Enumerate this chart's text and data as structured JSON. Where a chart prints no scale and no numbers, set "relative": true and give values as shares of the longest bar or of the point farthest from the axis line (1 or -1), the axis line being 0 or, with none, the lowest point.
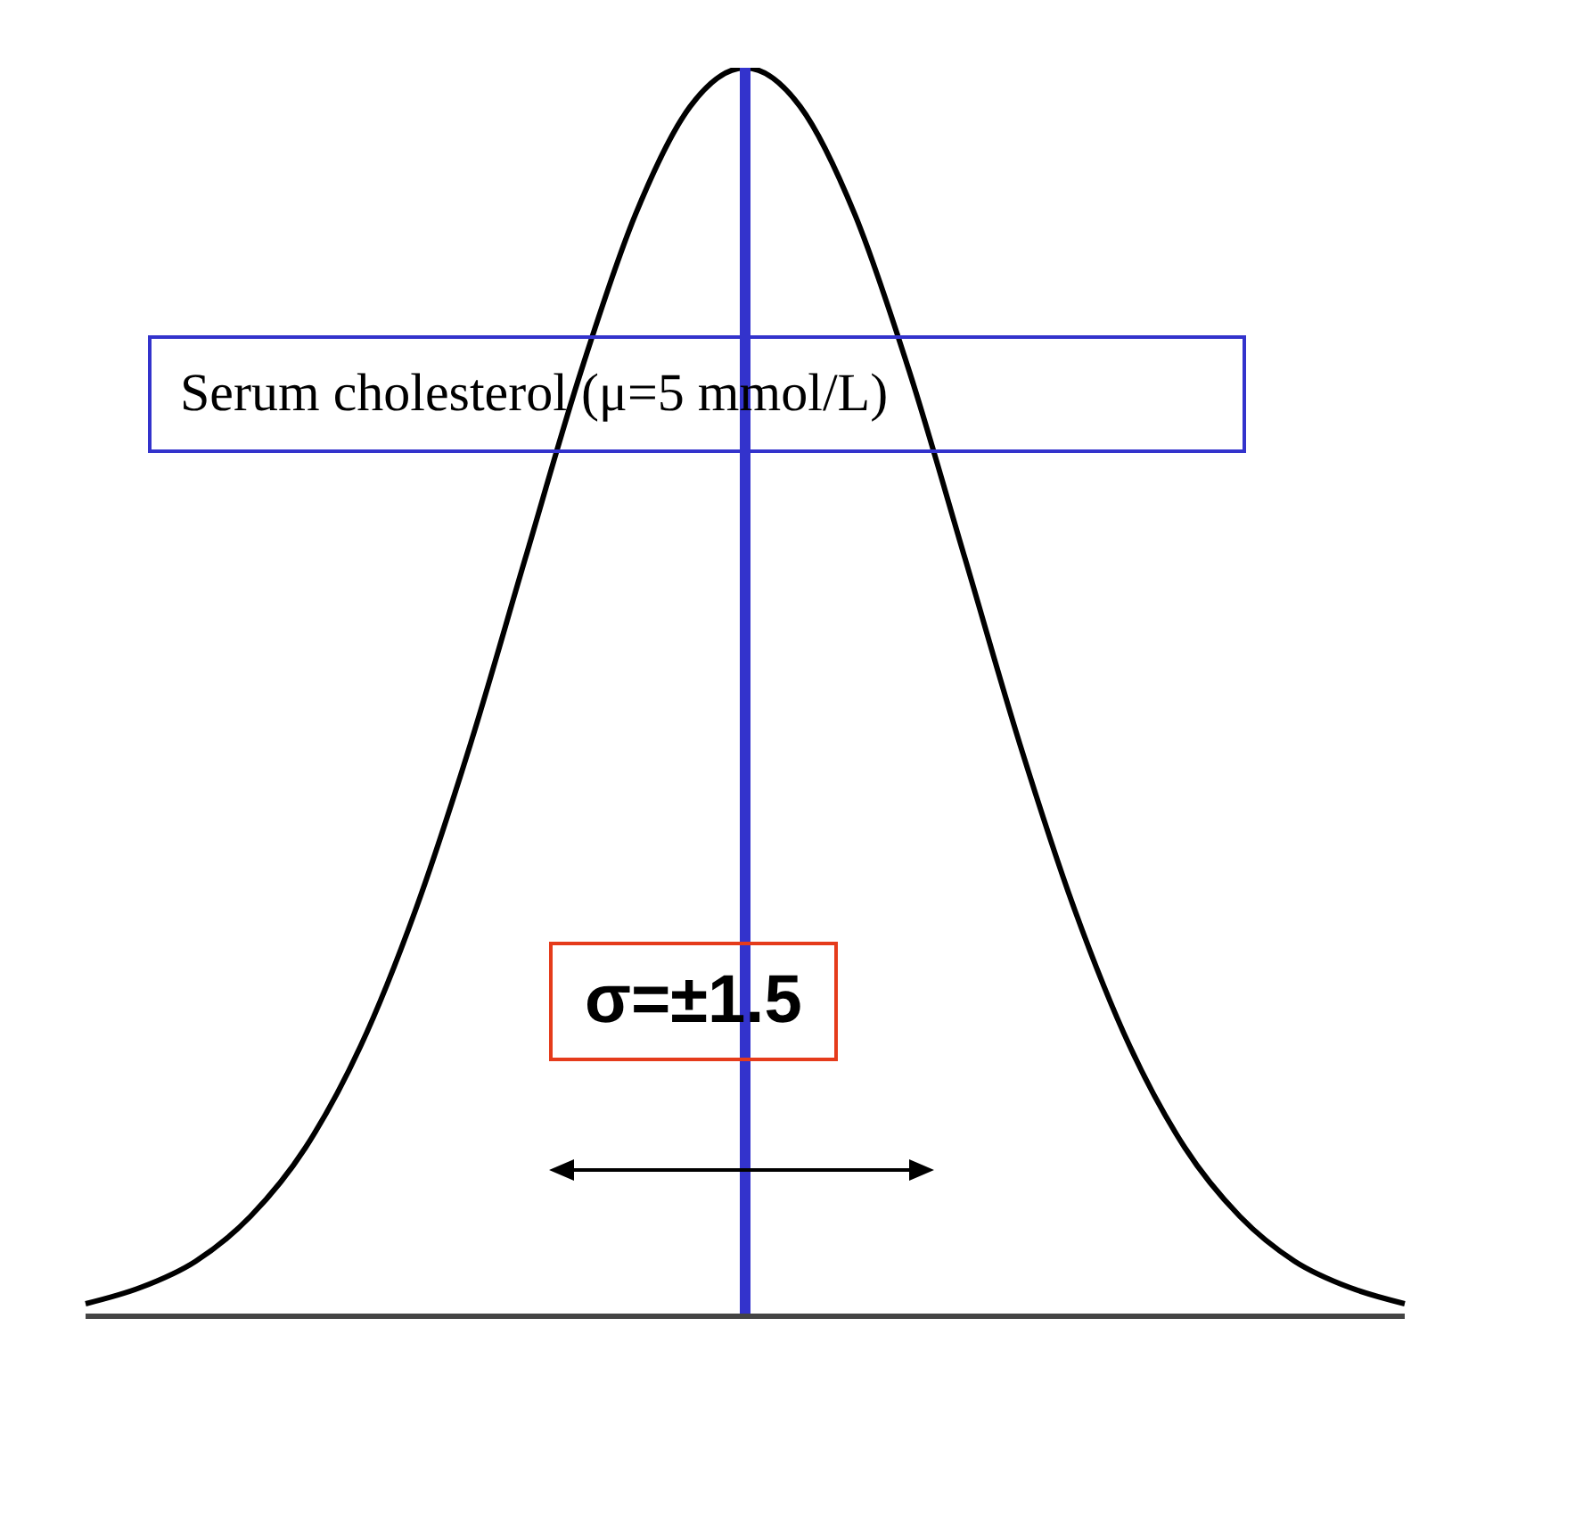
{
  "chart_data": {
    "type": "line",
    "relative": true,
    "categories": [
      null,
      null,
      null,
      null,
      null,
      null,
      null,
      null,
      null,
      null,
      null,
      null,
      null,
      null,
      null,
      null,
      null,
      null,
      null,
      null,
      null,
      null,
      null,
      null,
      null
    ],
    "series": [
      {
        "color": "#000000",
        "values": [
          0.01,
          0.023,
          0.044,
          0.08,
          0.135,
          0.216,
          0.325,
          0.458,
          0.607,
          0.755,
          0.882,
          0.969,
          1,
          0.969,
          0.882,
          0.755,
          0.607,
          0.458,
          0.325,
          0.216,
          0.135,
          0.08,
          0.044,
          0.023,
          0.01
        ]
      }
    ],
    "marker": "none",
    "line_style": "solid",
    "ref_lines": [
      {
        "axis": "x",
        "color": "#3333cc"
      }
    ],
    "annotations": [
      "Serum cholesterol (μ=5 mmol/L)",
      "σ=±1.5"
    ]
  }
}
